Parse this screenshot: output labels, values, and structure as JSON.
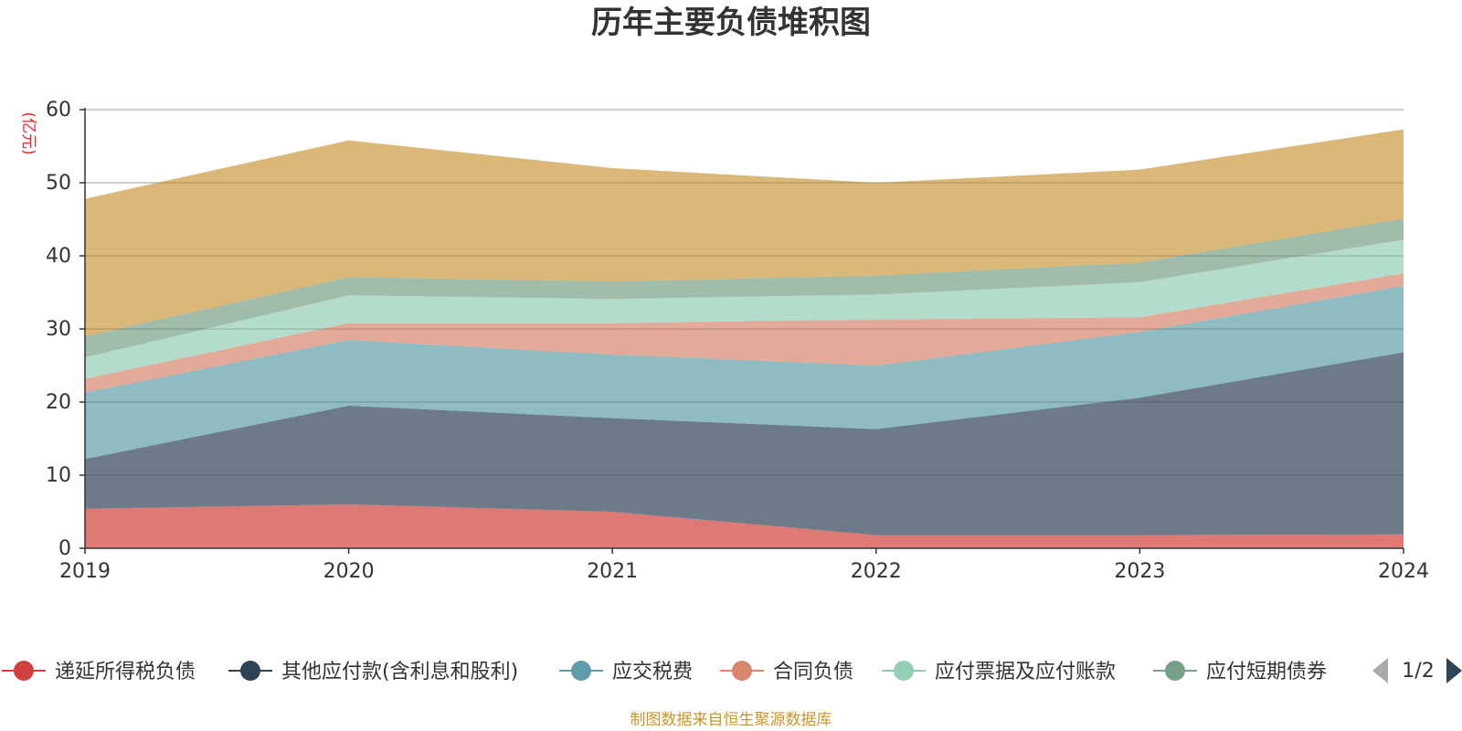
{
  "chart_data": {
    "type": "area",
    "stacked": true,
    "title": "历年主要负债堆积图",
    "ylabel": "(亿元)",
    "ylim": [
      0,
      60
    ],
    "yticks": [
      "0",
      "10",
      "20",
      "30",
      "40",
      "50",
      "60"
    ],
    "categories": [
      "2019",
      "2020",
      "2021",
      "2022",
      "2023",
      "2024"
    ],
    "grid": true,
    "legend_position": "bottom",
    "series": [
      {
        "name": "递延所得税负债",
        "color": "#d0403c",
        "values": [
          5.4,
          6.0,
          5.0,
          1.8,
          1.8,
          1.9
        ]
      },
      {
        "name": "其他应付款(含利息和股利)",
        "color": "#2e4354",
        "values": [
          6.8,
          13.5,
          12.8,
          14.5,
          18.8,
          24.9
        ]
      },
      {
        "name": "应交税费",
        "color": "#5f9ea8",
        "values": [
          9.1,
          9.0,
          8.7,
          8.7,
          9.0,
          9.1
        ]
      },
      {
        "name": "合同负债",
        "color": "#d9866e",
        "values": [
          1.9,
          2.3,
          4.3,
          6.3,
          2.0,
          1.7
        ]
      },
      {
        "name": "应付票据及应付账款",
        "color": "#93cfb3",
        "values": [
          2.9,
          3.8,
          3.3,
          3.4,
          4.8,
          4.6
        ]
      },
      {
        "name": "应付短期债券",
        "color": "#789f88",
        "values": [
          2.9,
          2.5,
          2.4,
          2.6,
          2.7,
          2.9
        ]
      },
      {
        "name": "",
        "color": "#cc9a3f",
        "values": [
          18.8,
          18.7,
          15.5,
          12.7,
          12.7,
          12.2
        ]
      }
    ],
    "legend_page": "1/2",
    "source": "制图数据来自恒生聚源数据库"
  }
}
